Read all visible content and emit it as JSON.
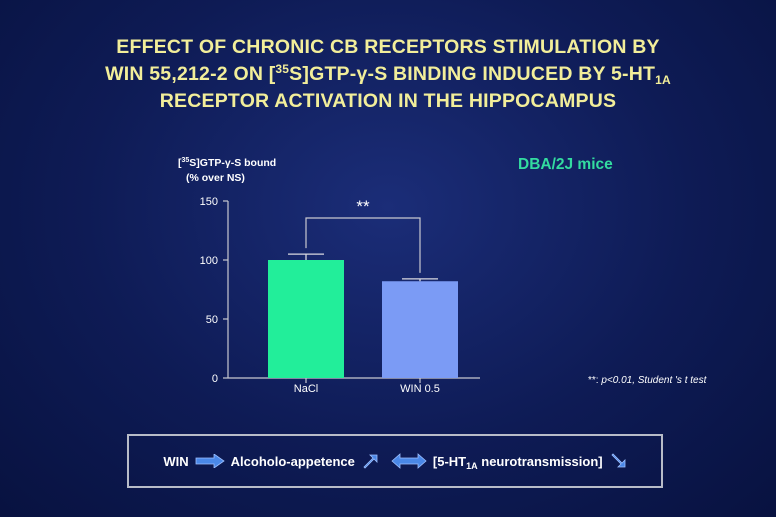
{
  "slide": {
    "title_lines": [
      "EFFECT OF CHRONIC CB RECEPTORS STIMULATION  BY",
      "WIN 55,212-2 ON [",
      "35",
      "S]GTP-γ-S BINDING INDUCED BY 5-HT",
      "1A",
      "RECEPTOR ACTIVATION IN THE HIPPOCAMPUS"
    ],
    "subtitle": "DBA/2J mice",
    "ylabel_pre": "[",
    "ylabel_sup": "35",
    "ylabel_post": "S]GTP-γ-S bound",
    "ylabel_line2": "(% over NS)",
    "significance": "**",
    "footnote_marker": "**:",
    "footnote": " p<0.01, Student 's t test",
    "summary": {
      "win": "WIN",
      "appetence": "Alcoholo-appetence",
      "nt_pre": "[5-HT",
      "nt_sub": "1A",
      "nt_post": " neurotransmission]"
    }
  },
  "colors": {
    "title": "#f2ee9a",
    "subtitle": "#33dca0",
    "bar_nacl": "#22ee9a",
    "bar_win": "#7b9bf5",
    "arrow": "#4a88e8"
  },
  "chart_data": {
    "type": "bar",
    "categories": [
      "NaCl",
      "WIN 0.5"
    ],
    "values": [
      100,
      82
    ],
    "errors": [
      5,
      2
    ],
    "ylim": [
      0,
      150
    ],
    "yticks": [
      0,
      50,
      100,
      150
    ],
    "xlabel": "",
    "ylabel": "[35S]GTP-γ-S bound (% over NS)",
    "grid": false,
    "annotation": "**"
  }
}
